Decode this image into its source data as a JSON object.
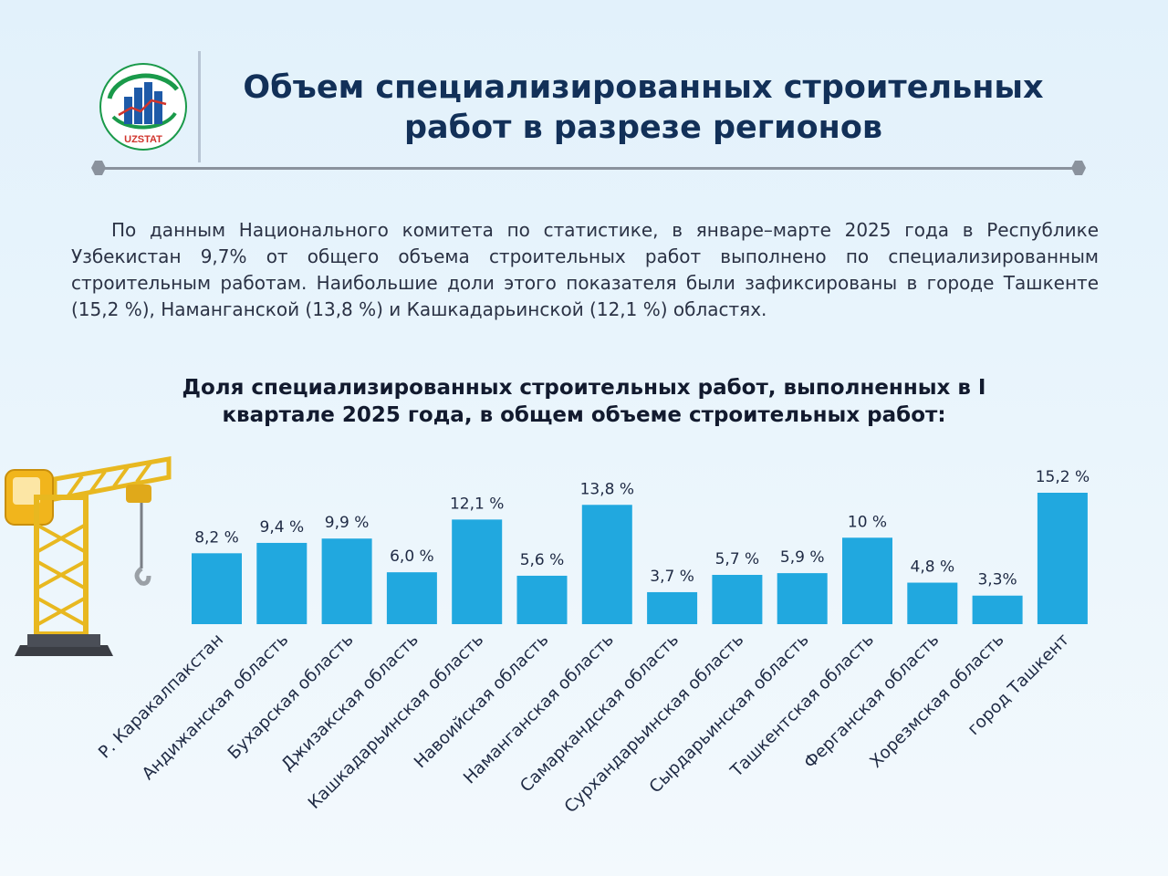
{
  "header": {
    "logo_text": "UZSTAT",
    "title": "Объем специализированных строительных работ в разрезе регионов"
  },
  "intro_text": "По данным Национального комитета по статистике, в январе–марте 2025 года в Республике Узбекистан 9,7% от общего объема строительных работ выполнено по специализированным строительным работам. Наибольшие доли этого показателя были зафиксированы в городе Ташкенте (15,2 %), Наманганской (13,8 %) и Кашкадарьинской (12,1 %) областях.",
  "colors": {
    "bar": "#21a8df",
    "title": "#123058",
    "divider": "#8a929d"
  },
  "chart_data": {
    "type": "bar",
    "title": "Доля специализированных строительных работ, выполненных в I квартале 2025 года, в общем объеме строительных работ:",
    "categories": [
      "Р. Каракалпакстан",
      "Андижанская область",
      "Бухарская область",
      "Джизакская область",
      "Кашкадарьинская область",
      "Навоийская область",
      "Наманганская область",
      "Самаркандская область",
      "Сурхандарьинская область",
      "Сырдарьинская область",
      "Ташкентская область",
      "Ферганская область",
      "Хорезмская область",
      "город Ташкент"
    ],
    "values": [
      8.2,
      9.4,
      9.9,
      6.0,
      12.1,
      5.6,
      13.8,
      3.7,
      5.7,
      5.9,
      10,
      4.8,
      3.3,
      15.2
    ],
    "value_labels": [
      "8,2 %",
      "9,4 %",
      "9,9 %",
      "6,0 %",
      "12,1 %",
      "5,6 %",
      "13,8 %",
      "3,7 %",
      "5,7 %",
      "5,9 %",
      "10 %",
      "4,8 %",
      "3,3%",
      "15,2 %"
    ],
    "unit": "%",
    "xlabel": "",
    "ylabel": "",
    "ylim": [
      0,
      16
    ],
    "grid": false,
    "legend": "none"
  }
}
